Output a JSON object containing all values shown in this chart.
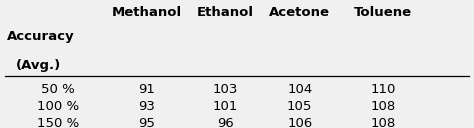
{
  "col_headers": [
    "Methanol",
    "Ethanol",
    "Acetone",
    "Toluene"
  ],
  "row_headers": [
    "50 %",
    "100 %",
    "150 %"
  ],
  "row_label_line1": "Accuracy",
  "row_label_line2": "(Avg.)",
  "data": [
    [
      "91",
      "103",
      "104",
      "110"
    ],
    [
      "93",
      "101",
      "105",
      "108"
    ],
    [
      "95",
      "96",
      "106",
      "108"
    ]
  ],
  "bg_color": "#f0f0f0",
  "text_color": "#000000",
  "header_fontsize": 9.5,
  "body_fontsize": 9.5
}
